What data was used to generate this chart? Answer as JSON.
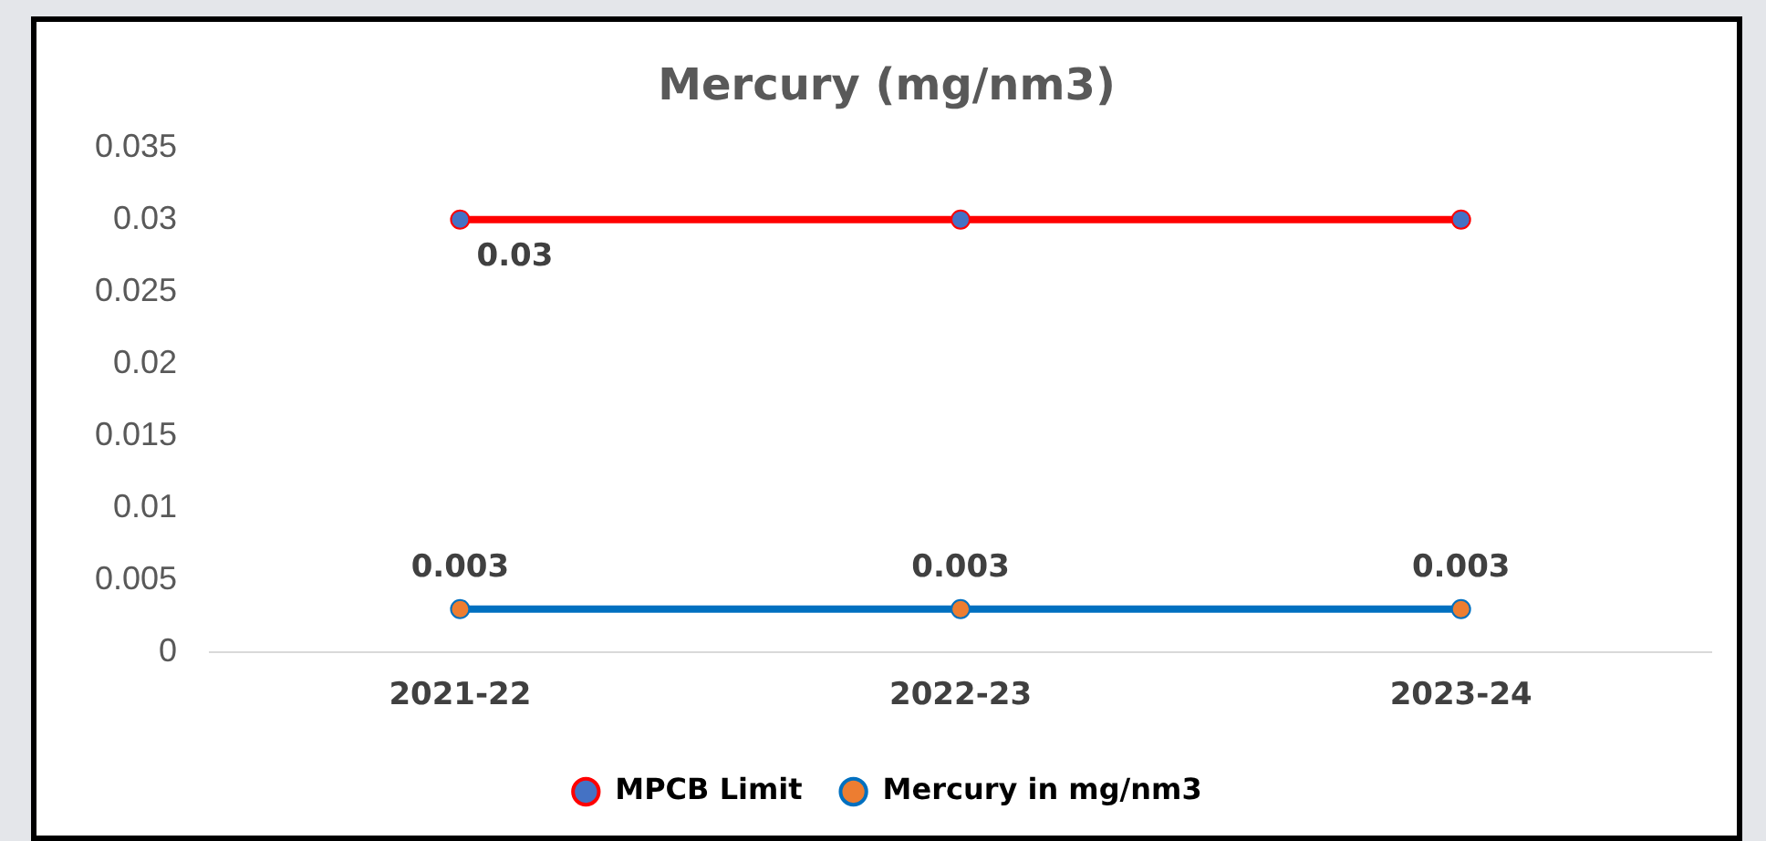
{
  "chart_data": {
    "type": "line",
    "title": "Mercury (mg/nm3)",
    "categories": [
      "2021-22",
      "2022-23",
      "2023-24"
    ],
    "series": [
      {
        "name": "MPCB Limit",
        "color": "#ff0000",
        "colors": [
          "#4472c4",
          "#4472c4",
          "#4472c4"
        ],
        "values": [
          0.03,
          0.03,
          0.03
        ],
        "value_labels": [
          "0.03",
          null,
          null
        ]
      },
      {
        "name": "Mercury in mg/nm3",
        "color": "#0070c0",
        "colors": [
          "#ed7d31",
          "#ed7d31",
          "#ed7d31"
        ],
        "values": [
          0.003,
          0.003,
          0.003
        ],
        "value_labels": [
          "0.003",
          "0.003",
          "0.003"
        ]
      }
    ],
    "ylim": [
      0,
      0.035
    ],
    "yticks": [
      0,
      0.005,
      0.01,
      0.015,
      0.02,
      0.025,
      0.03,
      0.035
    ],
    "grid": false,
    "legend": "bottom",
    "marker": "circle",
    "line_style": "solid"
  }
}
